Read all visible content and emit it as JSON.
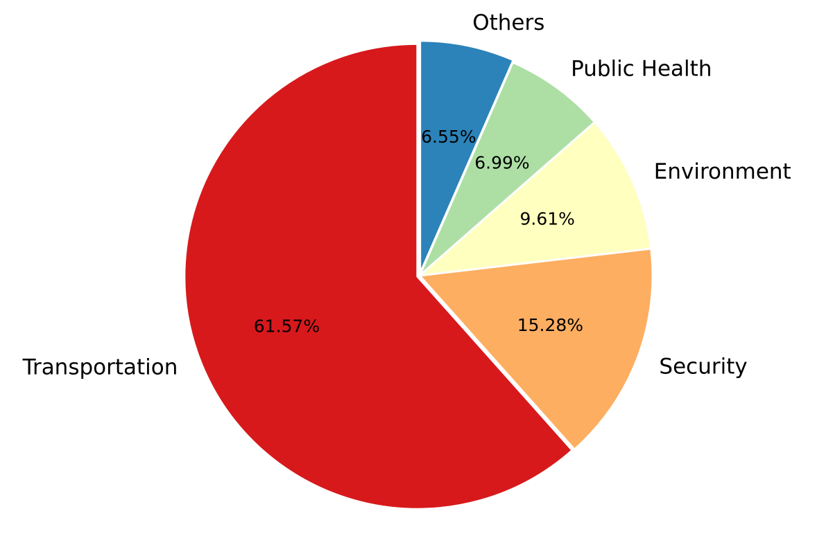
{
  "chart_data": {
    "type": "pie",
    "title": "",
    "start_angle_deg": 90,
    "direction": "clockwise",
    "slices": [
      {
        "label": "Others",
        "value": 6.55,
        "display": "6.55%",
        "color": "#2c83b9",
        "explode": 0.01
      },
      {
        "label": "Public Health",
        "value": 6.99,
        "display": "6.99%",
        "color": "#addfa5",
        "explode": 0
      },
      {
        "label": "Environment",
        "value": 9.61,
        "display": "9.61%",
        "color": "#ffffbf",
        "explode": 0
      },
      {
        "label": "Security",
        "value": 15.28,
        "display": "15.28%",
        "color": "#fdae61",
        "explode": 0
      },
      {
        "label": "Transportation",
        "value": 61.57,
        "display": "61.57%",
        "color": "#d7191c",
        "explode": 0.01
      }
    ]
  }
}
